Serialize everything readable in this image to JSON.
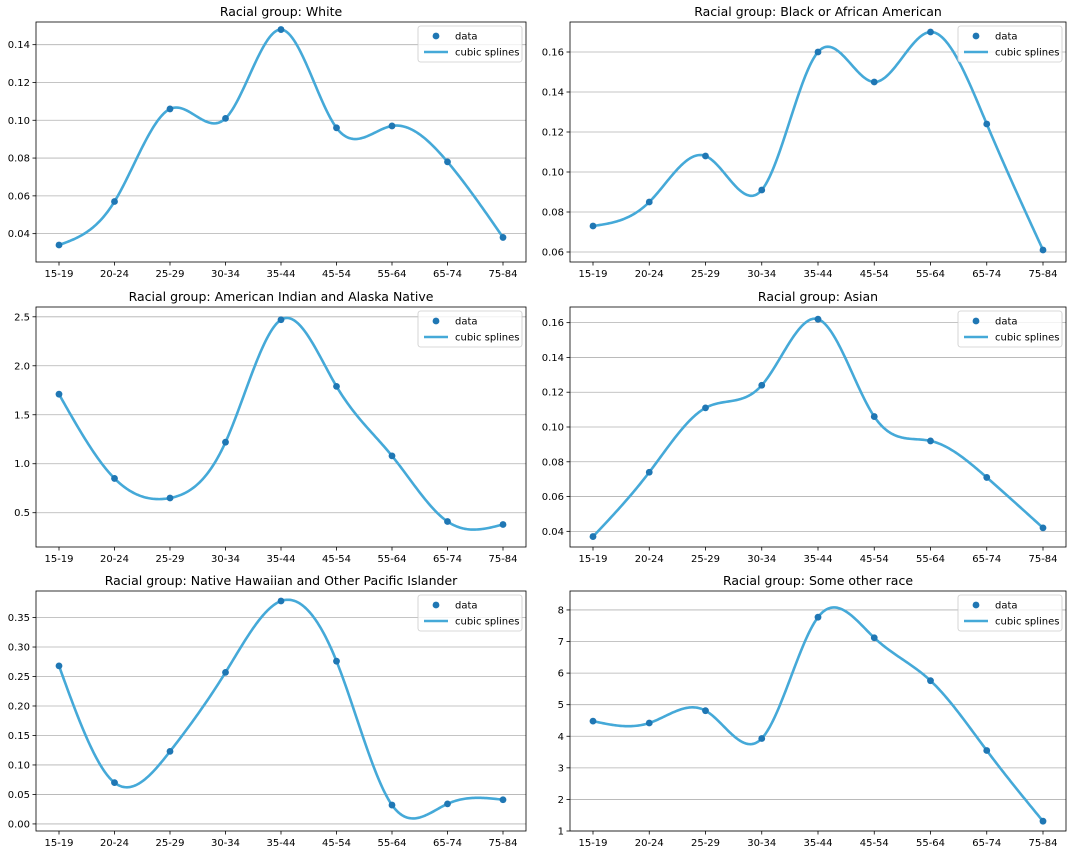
{
  "figure": {
    "background": "#ffffff",
    "colors": {
      "data_marker": "#1f77b4",
      "spline": "#45a9d8",
      "grid": "#b0b0b0",
      "axis": "#000000"
    }
  },
  "chart_data": [
    {
      "type": "line",
      "title": "Racial group: White",
      "categories": [
        "15-19",
        "20-24",
        "25-29",
        "30-34",
        "35-44",
        "45-54",
        "55-64",
        "65-74",
        "75-84"
      ],
      "ylim": [
        0.025,
        0.152
      ],
      "yticks": [
        0.04,
        0.06,
        0.08,
        0.1,
        0.12,
        0.14
      ],
      "ytick_labels": [
        "0.04",
        "0.06",
        "0.08",
        "0.10",
        "0.12",
        "0.14"
      ],
      "grid": "horizontal",
      "legend": "top-right",
      "series": [
        {
          "name": "data",
          "style": "markers",
          "values": [
            0.034,
            0.057,
            0.106,
            0.101,
            0.148,
            0.096,
            0.097,
            0.078,
            0.038
          ]
        },
        {
          "name": "cubic splines",
          "style": "line",
          "values": [
            0.034,
            0.057,
            0.106,
            0.101,
            0.148,
            0.096,
            0.097,
            0.078,
            0.038
          ]
        }
      ]
    },
    {
      "type": "line",
      "title": "Racial group: Black or African American",
      "categories": [
        "15-19",
        "20-24",
        "25-29",
        "30-34",
        "35-44",
        "45-54",
        "55-64",
        "65-74",
        "75-84"
      ],
      "ylim": [
        0.055,
        0.175
      ],
      "yticks": [
        0.06,
        0.08,
        0.1,
        0.12,
        0.14,
        0.16
      ],
      "ytick_labels": [
        "0.06",
        "0.08",
        "0.10",
        "0.12",
        "0.14",
        "0.16"
      ],
      "grid": "horizontal",
      "legend": "top-right",
      "series": [
        {
          "name": "data",
          "style": "markers",
          "values": [
            0.073,
            0.085,
            0.108,
            0.091,
            0.16,
            0.145,
            0.17,
            0.124,
            0.061
          ]
        },
        {
          "name": "cubic splines",
          "style": "line",
          "values": [
            0.073,
            0.085,
            0.108,
            0.091,
            0.16,
            0.145,
            0.17,
            0.124,
            0.061
          ]
        }
      ]
    },
    {
      "type": "line",
      "title": "Racial group: American Indian and Alaska Native",
      "categories": [
        "15-19",
        "20-24",
        "25-29",
        "30-34",
        "35-44",
        "45-54",
        "55-64",
        "65-74",
        "75-84"
      ],
      "ylim": [
        0.15,
        2.6
      ],
      "yticks": [
        0.5,
        1.0,
        1.5,
        2.0,
        2.5
      ],
      "ytick_labels": [
        "0.5",
        "1.0",
        "1.5",
        "2.0",
        "2.5"
      ],
      "grid": "horizontal",
      "legend": "top-right",
      "series": [
        {
          "name": "data",
          "style": "markers",
          "values": [
            1.71,
            0.85,
            0.65,
            1.22,
            2.47,
            1.79,
            1.08,
            0.41,
            0.38
          ]
        },
        {
          "name": "cubic splines",
          "style": "line",
          "values": [
            1.71,
            0.85,
            0.65,
            1.22,
            2.47,
            1.79,
            1.08,
            0.41,
            0.38
          ]
        }
      ]
    },
    {
      "type": "line",
      "title": "Racial group: Asian",
      "categories": [
        "15-19",
        "20-24",
        "25-29",
        "30-34",
        "35-44",
        "45-54",
        "55-64",
        "65-74",
        "75-84"
      ],
      "ylim": [
        0.031,
        0.169
      ],
      "yticks": [
        0.04,
        0.06,
        0.08,
        0.1,
        0.12,
        0.14,
        0.16
      ],
      "ytick_labels": [
        "0.04",
        "0.06",
        "0.08",
        "0.10",
        "0.12",
        "0.14",
        "0.16"
      ],
      "grid": "horizontal",
      "legend": "top-right",
      "series": [
        {
          "name": "data",
          "style": "markers",
          "values": [
            0.037,
            0.074,
            0.111,
            0.124,
            0.162,
            0.106,
            0.092,
            0.071,
            0.042
          ]
        },
        {
          "name": "cubic splines",
          "style": "line",
          "values": [
            0.037,
            0.074,
            0.111,
            0.124,
            0.162,
            0.106,
            0.092,
            0.071,
            0.042
          ]
        }
      ]
    },
    {
      "type": "line",
      "title": "Racial group: Native Hawaiian and Other Pacific Islander",
      "categories": [
        "15-19",
        "20-24",
        "25-29",
        "30-34",
        "35-44",
        "45-54",
        "55-64",
        "65-74",
        "75-84"
      ],
      "ylim": [
        -0.012,
        0.395
      ],
      "yticks": [
        0.0,
        0.05,
        0.1,
        0.15,
        0.2,
        0.25,
        0.3,
        0.35
      ],
      "ytick_labels": [
        "0.00",
        "0.05",
        "0.10",
        "0.15",
        "0.20",
        "0.25",
        "0.30",
        "0.35"
      ],
      "grid": "horizontal",
      "legend": "top-right",
      "series": [
        {
          "name": "data",
          "style": "markers",
          "values": [
            0.268,
            0.07,
            0.123,
            0.257,
            0.378,
            0.276,
            0.032,
            0.034,
            0.041
          ]
        },
        {
          "name": "cubic splines",
          "style": "line",
          "values": [
            0.268,
            0.07,
            0.123,
            0.257,
            0.378,
            0.276,
            0.032,
            0.034,
            0.041
          ]
        }
      ]
    },
    {
      "type": "line",
      "title": "Racial group: Some other race",
      "categories": [
        "15-19",
        "20-24",
        "25-29",
        "30-34",
        "35-44",
        "45-54",
        "55-64",
        "65-74",
        "75-84"
      ],
      "ylim": [
        1.0,
        8.6
      ],
      "yticks": [
        1,
        2,
        3,
        4,
        5,
        6,
        7,
        8
      ],
      "ytick_labels": [
        "1",
        "2",
        "3",
        "4",
        "5",
        "6",
        "7",
        "8"
      ],
      "grid": "horizontal",
      "legend": "top-right",
      "series": [
        {
          "name": "data",
          "style": "markers",
          "values": [
            4.48,
            4.42,
            4.81,
            3.93,
            7.77,
            7.12,
            5.76,
            3.55,
            1.31
          ]
        },
        {
          "name": "cubic splines",
          "style": "line",
          "values": [
            4.48,
            4.42,
            4.81,
            3.93,
            7.77,
            7.12,
            5.76,
            3.55,
            1.31
          ]
        }
      ]
    }
  ]
}
